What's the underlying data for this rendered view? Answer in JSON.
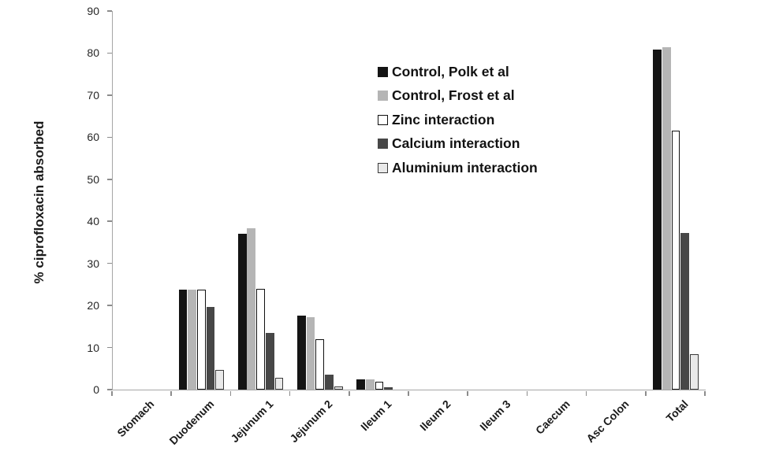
{
  "chart_data": {
    "type": "bar",
    "title": "",
    "xlabel": "",
    "ylabel": "% ciprofloxacin absorbed",
    "ylim": [
      0,
      90
    ],
    "ytick_step": 10,
    "yticks": [
      0,
      10,
      20,
      30,
      40,
      50,
      60,
      70,
      80,
      90
    ],
    "grid": false,
    "legend_position": "inside-upper-center",
    "categories": [
      "Stomach",
      "Duodenum",
      "Jejunum 1",
      "Jejunum 2",
      "Ileum 1",
      "Ileum 2",
      "Ileum 3",
      "Caecum",
      "Asc Colon",
      "Total"
    ],
    "series": [
      {
        "name": "Control, Polk et al",
        "fill": "#141414",
        "stroke": "#000000",
        "outlined": false,
        "values": [
          0,
          23.7,
          37.0,
          17.5,
          2.5,
          0,
          0,
          0,
          0,
          80.9
        ]
      },
      {
        "name": "Control, Frost et al",
        "fill": "#b5b5b5",
        "stroke": "#9a9a9a",
        "outlined": false,
        "values": [
          0,
          23.7,
          38.3,
          17.2,
          2.5,
          0,
          0,
          0,
          0,
          81.4
        ]
      },
      {
        "name": "Zinc interaction",
        "fill": "#ffffff",
        "stroke": "#111111",
        "outlined": true,
        "values": [
          0,
          23.8,
          23.9,
          11.9,
          1.9,
          0,
          0,
          0,
          0,
          61.6
        ]
      },
      {
        "name": "Calcium interaction",
        "fill": "#474747",
        "stroke": "#383838",
        "outlined": false,
        "values": [
          0,
          19.7,
          13.4,
          3.6,
          0.5,
          0,
          0,
          0,
          0,
          37.3
        ]
      },
      {
        "name": "Aluminium interaction",
        "fill": "#e9e9e9",
        "stroke": "#3a3a3a",
        "outlined": true,
        "values": [
          0,
          4.7,
          2.9,
          0.7,
          0,
          0,
          0,
          0,
          0,
          8.4
        ]
      }
    ],
    "axis_color": "#a6a6a6",
    "tick_color": "#8c8c8c",
    "text_color": "#1a1a1a",
    "background": "#ffffff"
  }
}
